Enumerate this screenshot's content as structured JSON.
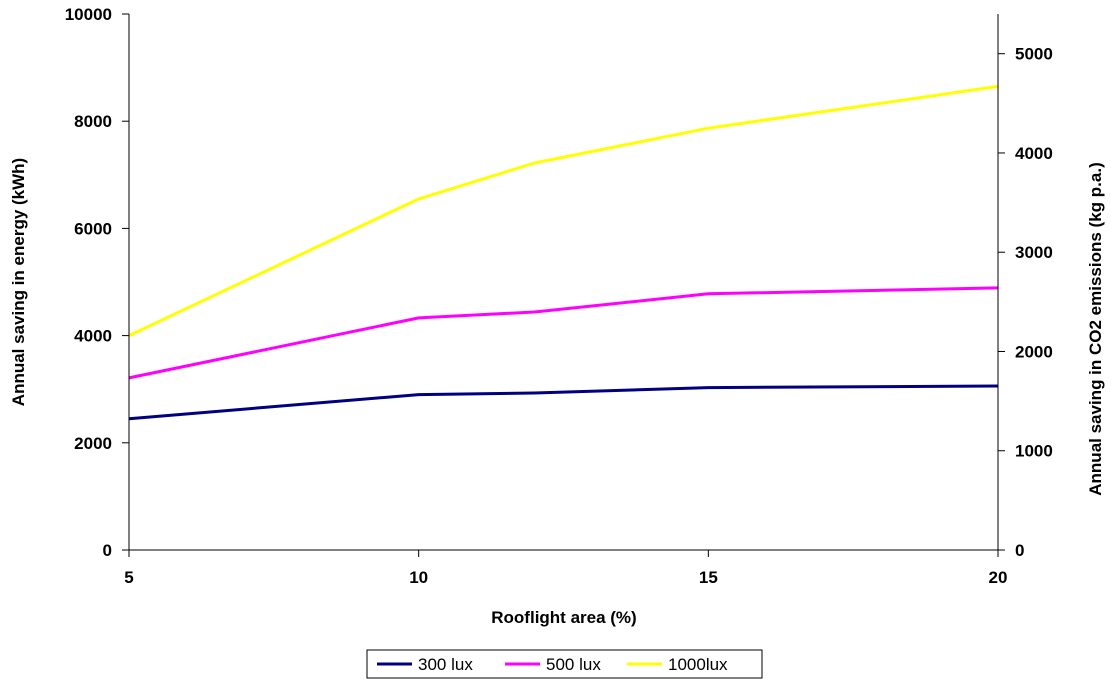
{
  "chart_data": {
    "type": "line",
    "title": "",
    "xlabel": "Rooflight area (%)",
    "ylabel": "Annual saving in energy (kWh)",
    "y2label": "Annual saving in CO2 emissions (kg p.a.)",
    "xlim": [
      5,
      20
    ],
    "ylim": [
      0,
      10000
    ],
    "y2lim": [
      0,
      5400
    ],
    "xticks": [
      "5",
      "10",
      "15",
      "20"
    ],
    "yticks": [
      "0",
      "2000",
      "4000",
      "6000",
      "8000",
      "10000"
    ],
    "y2ticks": [
      "0",
      "1000",
      "2000",
      "3000",
      "4000",
      "5000"
    ],
    "grid": false,
    "legend_position": "bottom",
    "series": [
      {
        "name": "300 lux",
        "color": "#000080",
        "x": [
          5,
          10,
          12,
          15,
          20
        ],
        "y": [
          2450,
          2900,
          2930,
          3030,
          3060
        ]
      },
      {
        "name": "500 lux",
        "color": "#ff00ff",
        "x": [
          5,
          10,
          12,
          15,
          20
        ],
        "y": [
          3210,
          4330,
          4440,
          4780,
          4890
        ]
      },
      {
        "name": "1000lux",
        "color": "#ffff00",
        "x": [
          5,
          10,
          12,
          15,
          20
        ],
        "y": [
          4000,
          6550,
          7220,
          7870,
          8650
        ]
      }
    ]
  }
}
